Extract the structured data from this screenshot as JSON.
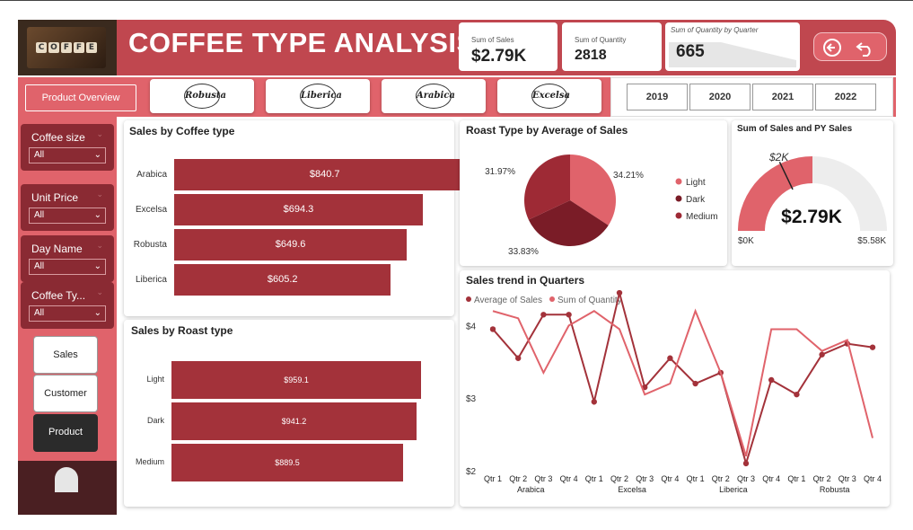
{
  "app": {
    "title": "COFFEE TYPE ANALYSIS",
    "logo_letters": [
      "C",
      "O",
      "F",
      "F",
      "E",
      "E"
    ]
  },
  "kpis": {
    "sales_label": "Sum of Sales",
    "sales_value": "$2.79K",
    "quantity_label": "Sum of Quantity",
    "quantity_value": "2818",
    "quarter_label": "Sum of Quantity by Quarter",
    "quarter_value": "665"
  },
  "nav": {
    "overview_label": "Product Overview",
    "coffee_types": [
      "Robusta",
      "Liberica",
      "Arabica",
      "Excelsa"
    ],
    "years": [
      "2019",
      "2020",
      "2021",
      "2022"
    ],
    "back_icon": "arrow-left-circle-icon",
    "undo_icon": "undo-arrow-icon"
  },
  "filters": [
    {
      "label": "Coffee size",
      "value": "All"
    },
    {
      "label": "Unit Price",
      "value": "All"
    },
    {
      "label": "Day Name",
      "value": "All"
    },
    {
      "label": "Coffee Ty...",
      "value": "All"
    }
  ],
  "pages": [
    "Sales",
    "Customer",
    "Product"
  ],
  "colors": {
    "brand": "#c0474f",
    "light": "#e0636b",
    "dark": "#7a1c27",
    "bar": "#a3323a",
    "medium": "#9e2a35"
  },
  "chart_data": [
    {
      "id": "sales_by_coffee_type",
      "type": "bar",
      "orientation": "horizontal",
      "title": "Sales by Coffee type",
      "categories": [
        "Arabica",
        "Excelsa",
        "Robusta",
        "Liberica"
      ],
      "values": [
        840.7,
        694.3,
        649.6,
        605.2
      ],
      "labels": [
        "$840.7",
        "$694.3",
        "$649.6",
        "$605.2"
      ],
      "xlim": [
        0,
        900
      ]
    },
    {
      "id": "sales_by_roast_type",
      "type": "bar",
      "orientation": "horizontal",
      "title": "Sales by Roast type",
      "categories": [
        "Light",
        "Dark",
        "Medium"
      ],
      "values": [
        959.1,
        941.2,
        889.5
      ],
      "labels": [
        "$959.1",
        "$941.2",
        "$889.5"
      ],
      "xlim": [
        0,
        1000
      ]
    },
    {
      "id": "roast_type_by_average_sales",
      "type": "pie",
      "title": "Roast Type by Average of Sales",
      "categories": [
        "Light",
        "Dark",
        "Medium"
      ],
      "values": [
        34.21,
        33.83,
        31.97
      ],
      "labels": [
        "34.21%",
        "33.83%",
        "31.97%"
      ],
      "colors": [
        "#e0636b",
        "#7a1c27",
        "#9e2a35"
      ],
      "legend": "right"
    },
    {
      "id": "sales_and_py_sales_gauge",
      "type": "gauge",
      "title": "Sum of Sales and PY Sales",
      "value": 2790,
      "value_label": "$2.79K",
      "target": 2000,
      "target_label": "$2K",
      "min": 0,
      "min_label": "$0K",
      "max": 5580,
      "max_label": "$5.58K"
    },
    {
      "id": "sales_trend_in_quarters",
      "type": "line",
      "title": "Sales trend in Quarters",
      "categories": [
        "Qtr 1",
        "Qtr 2",
        "Qtr 3",
        "Qtr 4",
        "Qtr 1",
        "Qtr 2",
        "Qtr 3",
        "Qtr 4",
        "Qtr 1",
        "Qtr 2",
        "Qtr 3",
        "Qtr 4",
        "Qtr 1",
        "Qtr 2",
        "Qtr 3",
        "Qtr 4"
      ],
      "groups": [
        {
          "name": "Arabica",
          "span": [
            0,
            3
          ]
        },
        {
          "name": "Excelsa",
          "span": [
            4,
            7
          ]
        },
        {
          "name": "Liberica",
          "span": [
            8,
            11
          ]
        },
        {
          "name": "Robusta",
          "span": [
            12,
            15
          ]
        }
      ],
      "yticks": [
        "$4",
        "$3",
        "$2"
      ],
      "ylim": [
        2,
        4.5
      ],
      "legend": "top-left",
      "series": [
        {
          "name": "Average of Sales",
          "color": "#a3323a",
          "markers": true,
          "values": [
            3.95,
            3.55,
            4.15,
            4.15,
            2.95,
            4.45,
            3.15,
            3.55,
            3.2,
            3.35,
            2.1,
            3.25,
            3.05,
            3.6,
            3.75,
            3.7
          ]
        },
        {
          "name": "Sum of Quantity",
          "color": "#e0636b",
          "markers": false,
          "values": [
            4.2,
            4.1,
            3.35,
            4.0,
            4.2,
            3.95,
            3.05,
            3.2,
            4.2,
            3.35,
            2.2,
            3.95,
            3.95,
            3.65,
            3.8,
            2.45
          ]
        }
      ]
    }
  ]
}
